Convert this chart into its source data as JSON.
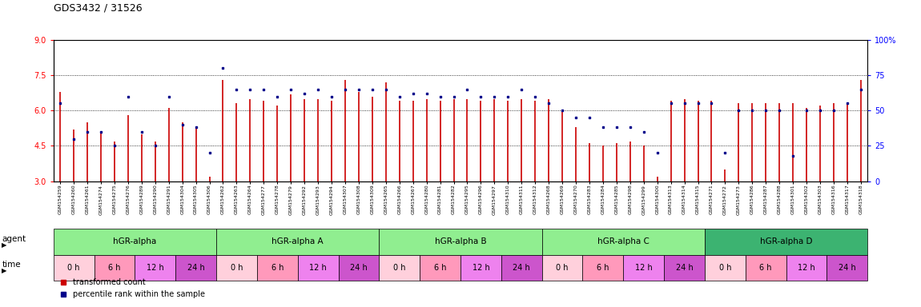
{
  "title": "GDS3432 / 31526",
  "ylim_left": [
    3,
    9
  ],
  "ylim_right": [
    0,
    100
  ],
  "yticks_left": [
    3,
    4.5,
    6,
    7.5,
    9
  ],
  "yticks_right": [
    0,
    25,
    50,
    75,
    100
  ],
  "hlines": [
    4.5,
    6.0,
    7.5
  ],
  "sample_ids": [
    "GSM154259",
    "GSM154260",
    "GSM154261",
    "GSM154274",
    "GSM154275",
    "GSM154276",
    "GSM154289",
    "GSM154290",
    "GSM154291",
    "GSM154304",
    "GSM154305",
    "GSM154306",
    "GSM154262",
    "GSM154263",
    "GSM154264",
    "GSM154277",
    "GSM154278",
    "GSM154279",
    "GSM154292",
    "GSM154293",
    "GSM154294",
    "GSM154307",
    "GSM154308",
    "GSM154309",
    "GSM154265",
    "GSM154266",
    "GSM154267",
    "GSM154280",
    "GSM154281",
    "GSM154282",
    "GSM154295",
    "GSM154296",
    "GSM154297",
    "GSM154310",
    "GSM154311",
    "GSM154312",
    "GSM154268",
    "GSM154269",
    "GSM154270",
    "GSM154283",
    "GSM154284",
    "GSM154285",
    "GSM154298",
    "GSM154299",
    "GSM154300",
    "GSM154313",
    "GSM154314",
    "GSM154315",
    "GSM154271",
    "GSM154272",
    "GSM154273",
    "GSM154286",
    "GSM154287",
    "GSM154288",
    "GSM154301",
    "GSM154302",
    "GSM154303",
    "GSM154316",
    "GSM154317",
    "GSM154318"
  ],
  "red_values": [
    6.8,
    5.2,
    5.5,
    5.1,
    4.7,
    5.8,
    5.0,
    4.7,
    6.1,
    5.5,
    5.3,
    3.2,
    7.3,
    6.3,
    6.5,
    6.4,
    6.2,
    6.7,
    6.5,
    6.5,
    6.4,
    7.3,
    6.8,
    6.6,
    7.2,
    6.4,
    6.4,
    6.5,
    6.4,
    6.5,
    6.5,
    6.4,
    6.5,
    6.4,
    6.5,
    6.4,
    6.5,
    6.0,
    5.3,
    4.6,
    4.5,
    4.6,
    4.7,
    4.5,
    3.2,
    6.4,
    6.5,
    6.4,
    6.4,
    3.5,
    6.3,
    6.3,
    6.3,
    6.3,
    6.3,
    6.1,
    6.2,
    6.3,
    6.3,
    7.3
  ],
  "blue_values": [
    55,
    30,
    35,
    35,
    25,
    60,
    35,
    25,
    60,
    40,
    38,
    20,
    80,
    65,
    65,
    65,
    60,
    65,
    62,
    65,
    60,
    65,
    65,
    65,
    65,
    60,
    62,
    62,
    60,
    60,
    65,
    60,
    60,
    60,
    65,
    60,
    55,
    50,
    45,
    45,
    38,
    38,
    38,
    35,
    20,
    55,
    55,
    55,
    55,
    20,
    50,
    50,
    50,
    50,
    18,
    50,
    50,
    50,
    55,
    65
  ],
  "groups": [
    {
      "label": "hGR-alpha",
      "start": 0,
      "end": 12,
      "color": "#90EE90"
    },
    {
      "label": "hGR-alpha A",
      "start": 12,
      "end": 24,
      "color": "#90EE90"
    },
    {
      "label": "hGR-alpha B",
      "start": 24,
      "end": 36,
      "color": "#90EE90"
    },
    {
      "label": "hGR-alpha C",
      "start": 36,
      "end": 48,
      "color": "#90EE90"
    },
    {
      "label": "hGR-alpha D",
      "start": 48,
      "end": 60,
      "color": "#3CB371"
    }
  ],
  "time_labels": [
    "0 h",
    "6 h",
    "12 h",
    "24 h"
  ],
  "time_colors": [
    "#FFD0DC",
    "#FF99BB",
    "#EE82EE",
    "#CC55CC"
  ],
  "bar_color": "#CC0000",
  "dot_color": "#00008B",
  "plot_bg": "#FFFFFF"
}
